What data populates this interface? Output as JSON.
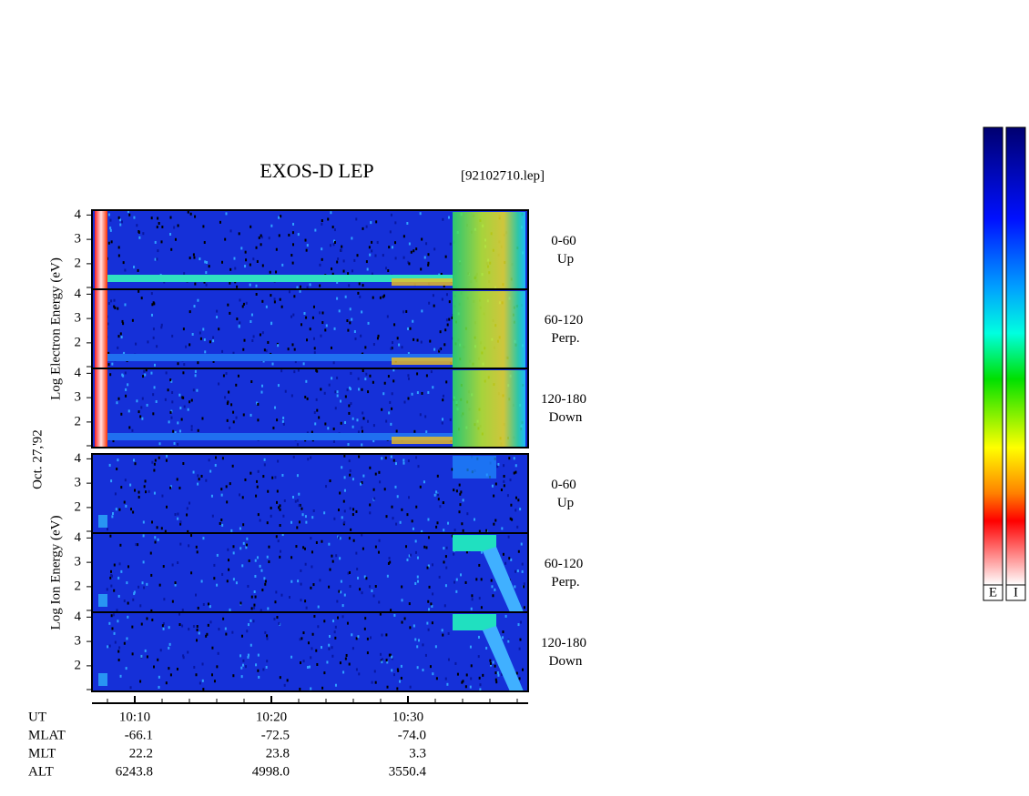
{
  "header": {
    "title": "EXOS-D LEP",
    "file": "[92102710.lep]"
  },
  "date": "Oct. 27,'92",
  "groups": [
    {
      "label": "Log Electron Energy (eV)",
      "panels": [
        {
          "range": "0-60",
          "direction": "Up"
        },
        {
          "range": "60-120",
          "direction": "Perp."
        },
        {
          "range": "120-180",
          "direction": "Down"
        }
      ]
    },
    {
      "label": "Log Ion Energy (eV)",
      "panels": [
        {
          "range": "0-60",
          "direction": "Up"
        },
        {
          "range": "60-120",
          "direction": "Perp."
        },
        {
          "range": "120-180",
          "direction": "Down"
        }
      ]
    }
  ],
  "ylim": [
    0.95,
    4.2
  ],
  "yticks": [
    4,
    3,
    2
  ],
  "orbit": {
    "labels": [
      "UT",
      "MLAT",
      "MLT",
      "ALT"
    ],
    "rows": [
      [
        "10:10",
        "10:20",
        "10:30"
      ],
      [
        "-66.1",
        "-72.5",
        "-74.0"
      ],
      [
        "22.2",
        "23.8",
        "3.3"
      ],
      [
        "6243.8",
        "4998.0",
        "3550.4"
      ]
    ]
  },
  "colorbar_labels": [
    "E",
    "I"
  ]
}
